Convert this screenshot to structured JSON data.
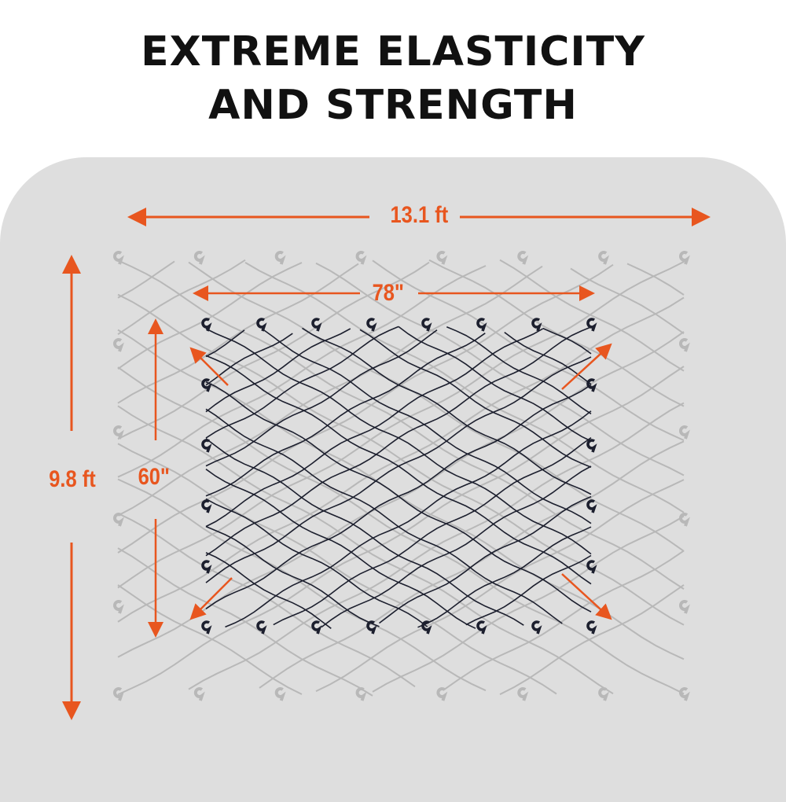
{
  "title_line1": "EXTREME ELASTICITY",
  "title_line2": "AND STRENGTH",
  "dimensions": {
    "stretched_width": "13.1 ft",
    "stretched_height": "9.8 ft",
    "relaxed_width": "78\"",
    "relaxed_height": "60\""
  },
  "colors": {
    "accent": "#e8561f",
    "net_relaxed": "#1c1f2e",
    "net_stretched": "#b8b8b8",
    "background": "#dedede"
  }
}
